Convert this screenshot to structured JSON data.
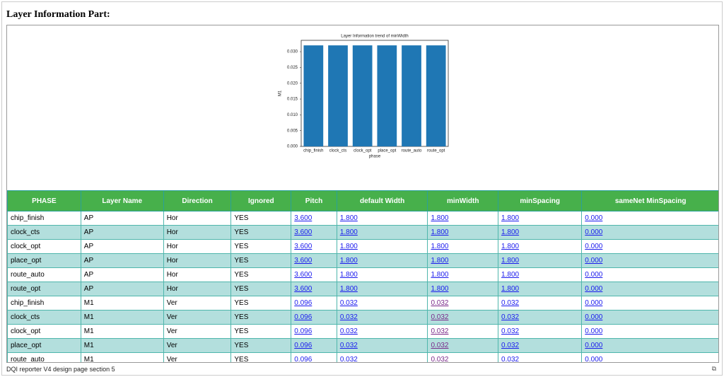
{
  "header": {
    "title": "Layer Information Part:"
  },
  "chart_data": {
    "type": "bar",
    "title": "Layer Information trend of minWidth",
    "x_label": "phase",
    "y_label": "M1",
    "categories": [
      "chip_finish",
      "clock_cts",
      "clock_opt",
      "place_opt",
      "route_auto",
      "route_opt"
    ],
    "values": [
      0.032,
      0.032,
      0.032,
      0.032,
      0.032,
      0.032
    ],
    "color": "#1f77b4",
    "ylim": [
      0,
      0.0336
    ],
    "yticks": [
      {
        "value": 0,
        "label": "0.000"
      },
      {
        "value": 0.005,
        "label": "0.005"
      },
      {
        "value": 0.01,
        "label": "0.010"
      },
      {
        "value": 0.015,
        "label": "0.015"
      },
      {
        "value": 0.02,
        "label": "0.020"
      },
      {
        "value": 0.025,
        "label": "0.025"
      },
      {
        "value": 0.03,
        "label": "0.030"
      }
    ],
    "grid": false
  },
  "table": {
    "columns": [
      "PHASE",
      "Layer Name",
      "Direction",
      "Ignored",
      "Pitch",
      "default Width",
      "minWidth",
      "minSpacing",
      "sameNet MinSpacing"
    ],
    "rows": [
      [
        "chip_finish",
        "AP",
        "Hor",
        "YES",
        "3.600",
        "1.800",
        "1.800",
        "1.800",
        "0.000"
      ],
      [
        "clock_cts",
        "AP",
        "Hor",
        "YES",
        "3.600",
        "1.800",
        "1.800",
        "1.800",
        "0.000"
      ],
      [
        "clock_opt",
        "AP",
        "Hor",
        "YES",
        "3.600",
        "1.800",
        "1.800",
        "1.800",
        "0.000"
      ],
      [
        "place_opt",
        "AP",
        "Hor",
        "YES",
        "3.600",
        "1.800",
        "1.800",
        "1.800",
        "0.000"
      ],
      [
        "route_auto",
        "AP",
        "Hor",
        "YES",
        "3.600",
        "1.800",
        "1.800",
        "1.800",
        "0.000"
      ],
      [
        "route_opt",
        "AP",
        "Hor",
        "YES",
        "3.600",
        "1.800",
        "1.800",
        "1.800",
        "0.000"
      ],
      [
        "chip_finish",
        "M1",
        "Ver",
        "YES",
        "0.096",
        "0.032",
        "0.032",
        "0.032",
        "0.000"
      ],
      [
        "clock_cts",
        "M1",
        "Ver",
        "YES",
        "0.096",
        "0.032",
        "0.032",
        "0.032",
        "0.000"
      ],
      [
        "clock_opt",
        "M1",
        "Ver",
        "YES",
        "0.096",
        "0.032",
        "0.032",
        "0.032",
        "0.000"
      ],
      [
        "place_opt",
        "M1",
        "Ver",
        "YES",
        "0.096",
        "0.032",
        "0.032",
        "0.032",
        "0.000"
      ],
      [
        "route_auto",
        "M1",
        "Ver",
        "YES",
        "0.096",
        "0.032",
        "0.032",
        "0.032",
        "0.000"
      ]
    ]
  },
  "footer": {
    "text": "DQI reporter V4 design page section 5"
  }
}
